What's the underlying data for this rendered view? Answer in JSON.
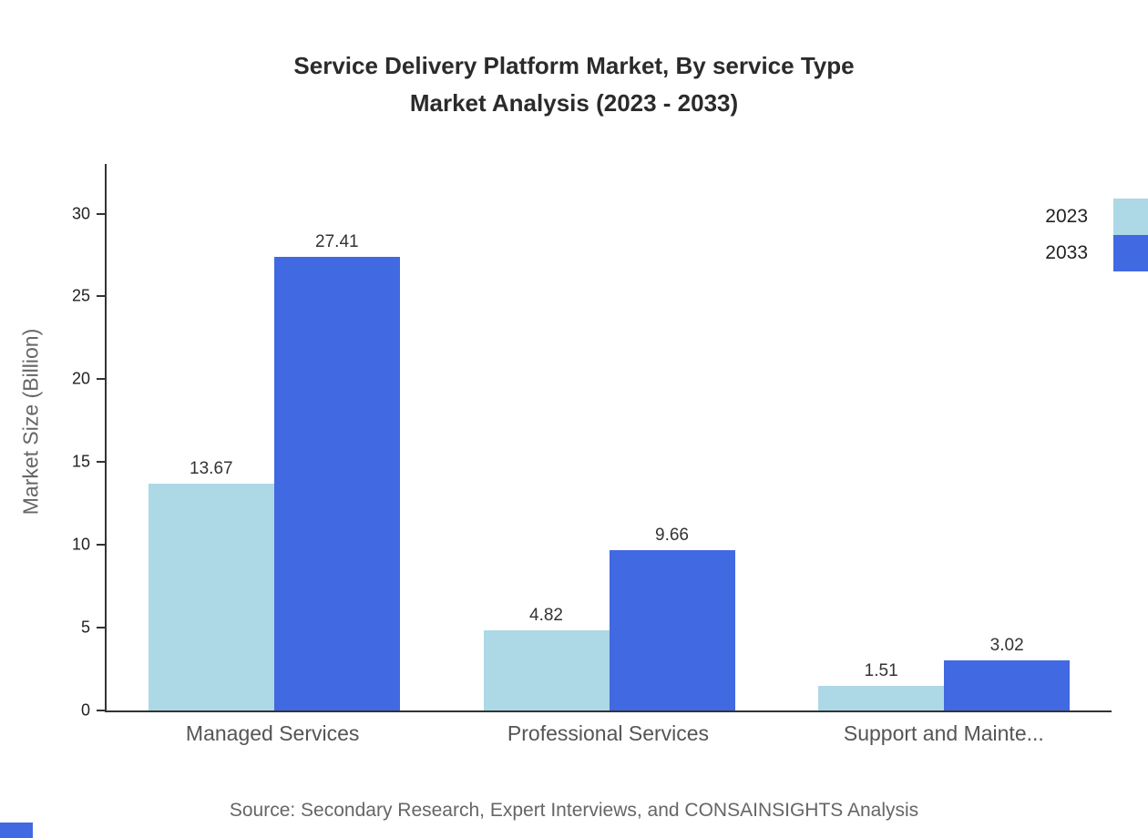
{
  "title": {
    "line1": "Service Delivery Platform Market, By service Type",
    "line2": "Market Analysis (2023 - 2033)"
  },
  "chart_data": {
    "type": "bar",
    "categories": [
      "Managed Services",
      "Professional Services",
      "Support and Mainte..."
    ],
    "series": [
      {
        "name": "2023",
        "color": "#ADD8E6",
        "values": [
          13.67,
          4.82,
          1.51
        ]
      },
      {
        "name": "2033",
        "color": "#4169E1",
        "values": [
          27.41,
          9.66,
          3.02
        ]
      }
    ],
    "xlabel": "",
    "ylabel": "Market Size (Billion)",
    "ylim": [
      0,
      33
    ],
    "yticks": [
      0,
      5,
      10,
      15,
      20,
      25,
      30
    ],
    "legend_position": "top-right",
    "grid": false
  },
  "source": "Source: Secondary Research, Expert Interviews, and CONSAINSIGHTS Analysis",
  "colors": {
    "accent_blue": "#4169E1",
    "light_blue": "#ADD8E6",
    "title_text": "#2b2b2b",
    "axis_text": "#222222",
    "muted_text": "#666666"
  }
}
